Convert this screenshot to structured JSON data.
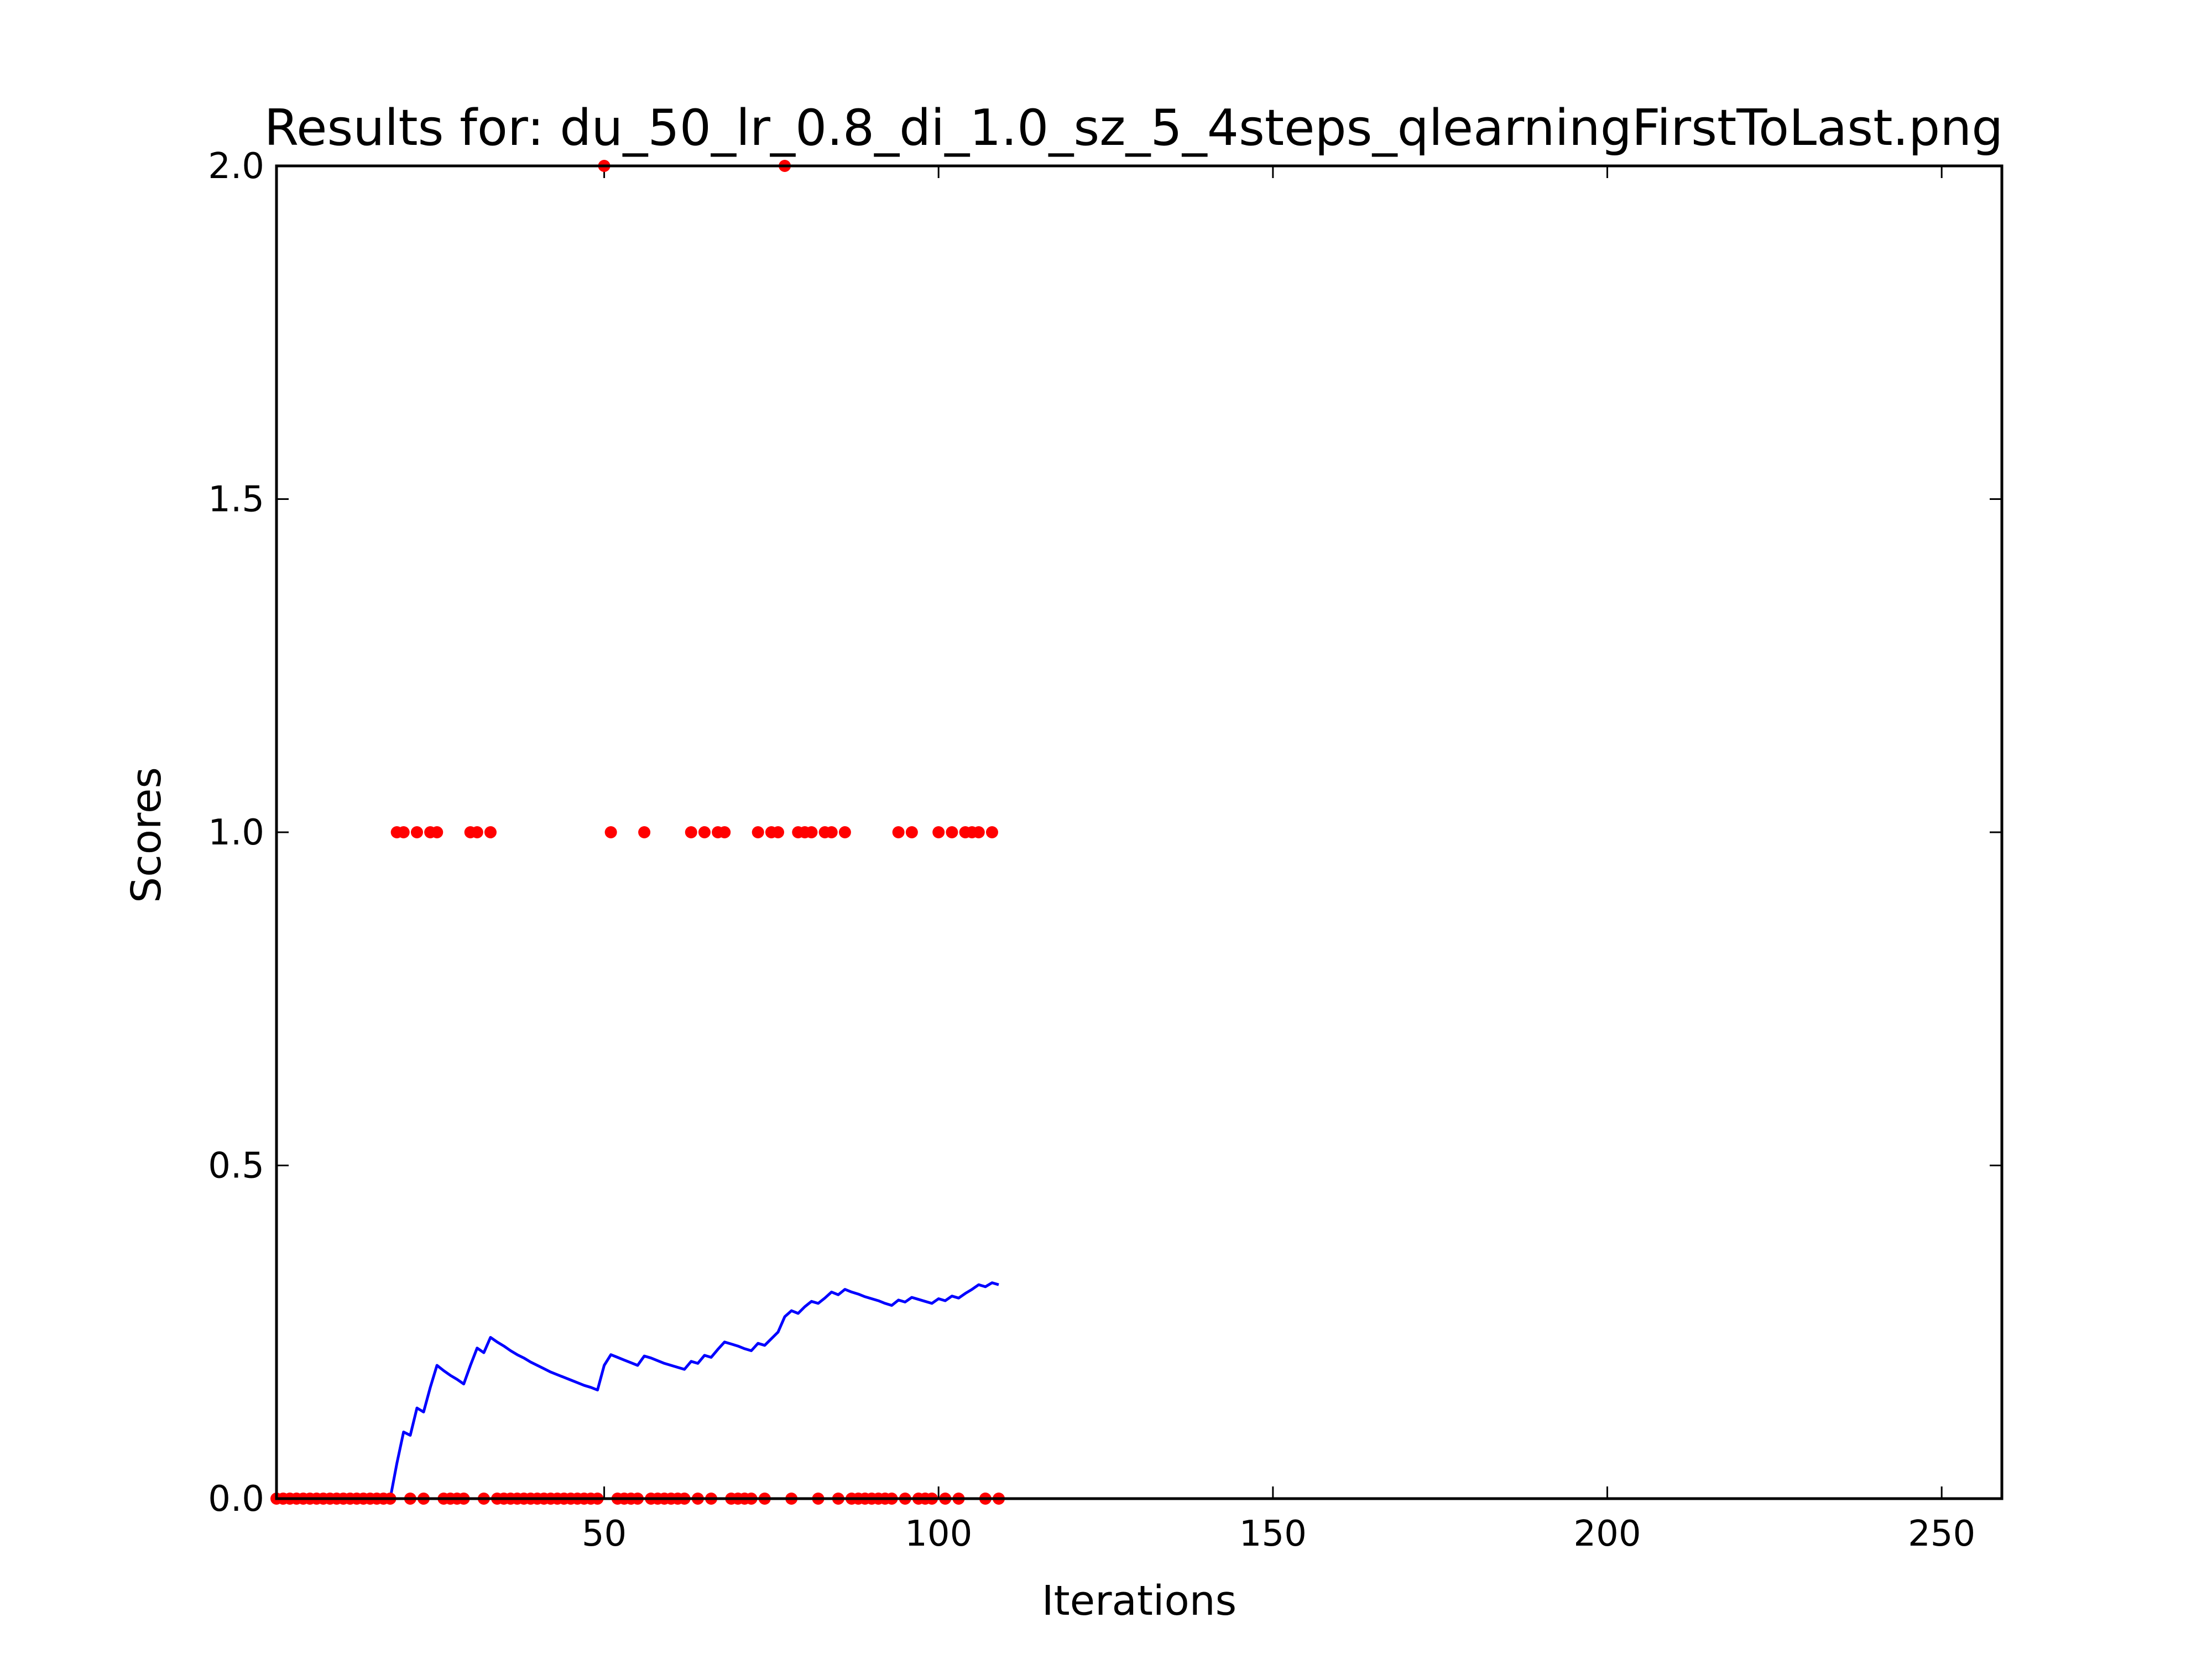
{
  "chart_data": {
    "type": "scatter",
    "title": "Results for: du_50_lr_0.8_di_1.0_sz_5_4steps_qlearningFirstToLast.png",
    "xlabel": "Iterations",
    "ylabel": "Scores",
    "xlim": [
      1,
      259
    ],
    "ylim": [
      0.0,
      2.0
    ],
    "xticks": [
      50,
      100,
      150,
      200,
      250
    ],
    "yticks": [
      0.0,
      0.5,
      1.0,
      1.5,
      2.0
    ],
    "ytick_labels": [
      "0.0",
      "0.5",
      "1.0",
      "1.5",
      "2.0"
    ],
    "grid": false,
    "legend": "none",
    "colors": {
      "scores": "#ff0000",
      "average": "#0000ff",
      "axes": "#000000"
    },
    "series": [
      {
        "kind": "scatter",
        "x": [
          1,
          2,
          3,
          4,
          5,
          6,
          7,
          8,
          9,
          10,
          11,
          12,
          13,
          14,
          15,
          16,
          17,
          18,
          19,
          20,
          21,
          22,
          23,
          24,
          25,
          26,
          27,
          28,
          29,
          30,
          31,
          32,
          33,
          34,
          35,
          36,
          37,
          38,
          39,
          40,
          41,
          42,
          43,
          44,
          45,
          46,
          47,
          48,
          49,
          50,
          51,
          52,
          53,
          54,
          55,
          56,
          57,
          58,
          59,
          60,
          61,
          62,
          63,
          64,
          65,
          66,
          67,
          68,
          69,
          70,
          71,
          72,
          73,
          74,
          75,
          76,
          77,
          78,
          79,
          80,
          81,
          82,
          83,
          84,
          85,
          86,
          87,
          88,
          89,
          90,
          91,
          92,
          93,
          94,
          95,
          96,
          97,
          98,
          99,
          100,
          101,
          102,
          103,
          104,
          105,
          106,
          107,
          108,
          109
        ],
        "y": [
          0,
          0,
          0,
          0,
          0,
          0,
          0,
          0,
          0,
          0,
          0,
          0,
          0,
          0,
          0,
          0,
          0,
          0,
          1,
          1,
          0,
          1,
          0,
          1,
          1,
          0,
          0,
          0,
          0,
          1,
          1,
          0,
          1,
          0,
          0,
          0,
          0,
          0,
          0,
          0,
          0,
          0,
          0,
          0,
          0,
          0,
          0,
          0,
          0,
          2,
          1,
          0,
          0,
          0,
          0,
          1,
          0,
          0,
          0,
          0,
          0,
          0,
          1,
          0,
          1,
          0,
          1,
          1,
          0,
          0,
          0,
          0,
          1,
          0,
          1,
          1,
          2,
          0,
          1,
          1,
          1,
          0,
          1,
          1,
          0,
          1,
          0,
          0,
          0,
          0,
          0,
          0,
          0,
          1,
          0,
          1,
          0,
          0,
          0,
          1,
          0,
          1,
          0,
          1,
          1,
          1,
          0,
          1,
          0
        ]
      },
      {
        "kind": "line",
        "x": [
          1,
          2,
          3,
          4,
          5,
          6,
          7,
          8,
          9,
          10,
          11,
          12,
          13,
          14,
          15,
          16,
          17,
          18,
          19,
          20,
          21,
          22,
          23,
          24,
          25,
          26,
          27,
          28,
          29,
          30,
          31,
          32,
          33,
          34,
          35,
          36,
          37,
          38,
          39,
          40,
          41,
          42,
          43,
          44,
          45,
          46,
          47,
          48,
          49,
          50,
          51,
          52,
          53,
          54,
          55,
          56,
          57,
          58,
          59,
          60,
          61,
          62,
          63,
          64,
          65,
          66,
          67,
          68,
          69,
          70,
          71,
          72,
          73,
          74,
          75,
          76,
          77,
          78,
          79,
          80,
          81,
          82,
          83,
          84,
          85,
          86,
          87,
          88,
          89,
          90,
          91,
          92,
          93,
          94,
          95,
          96,
          97,
          98,
          99,
          100,
          101,
          102,
          103,
          104,
          105,
          106,
          107,
          108,
          109
        ],
        "y": [
          0,
          0,
          0,
          0,
          0,
          0,
          0,
          0,
          0,
          0,
          0,
          0,
          0,
          0,
          0,
          0,
          0,
          0,
          0.053,
          0.1,
          0.095,
          0.136,
          0.13,
          0.167,
          0.2,
          0.192,
          0.185,
          0.179,
          0.172,
          0.2,
          0.226,
          0.219,
          0.242,
          0.235,
          0.229,
          0.222,
          0.216,
          0.211,
          0.205,
          0.2,
          0.195,
          0.19,
          0.186,
          0.182,
          0.178,
          0.174,
          0.17,
          0.167,
          0.163,
          0.2,
          0.216,
          0.212,
          0.208,
          0.204,
          0.2,
          0.214,
          0.211,
          0.207,
          0.203,
          0.2,
          0.197,
          0.194,
          0.206,
          0.203,
          0.215,
          0.212,
          0.224,
          0.235,
          0.232,
          0.229,
          0.225,
          0.222,
          0.233,
          0.23,
          0.24,
          0.25,
          0.273,
          0.282,
          0.278,
          0.288,
          0.296,
          0.293,
          0.301,
          0.31,
          0.306,
          0.314,
          0.31,
          0.307,
          0.303,
          0.3,
          0.297,
          0.293,
          0.29,
          0.298,
          0.295,
          0.302,
          0.299,
          0.296,
          0.293,
          0.3,
          0.297,
          0.304,
          0.301,
          0.308,
          0.314,
          0.321,
          0.318,
          0.324,
          0.321
        ]
      }
    ]
  }
}
